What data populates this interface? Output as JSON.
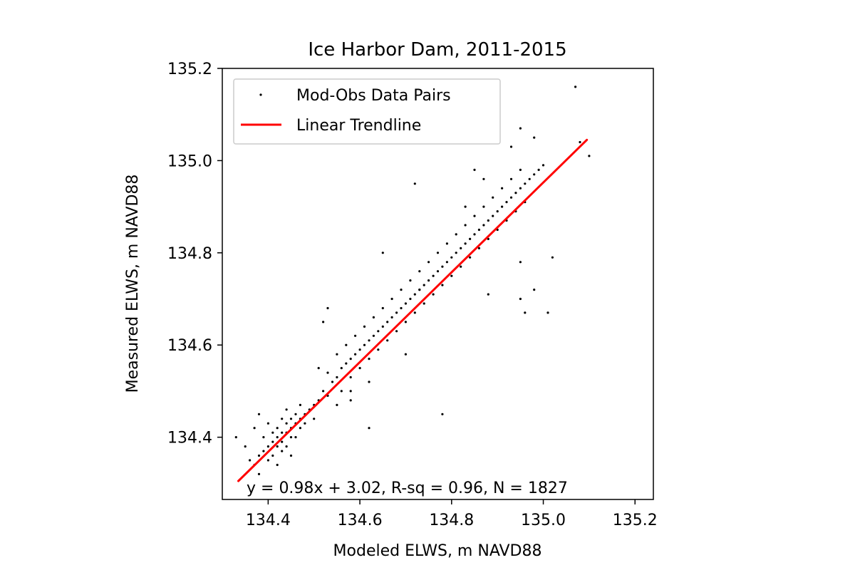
{
  "chart_data": {
    "type": "scatter",
    "title": "Ice Harbor Dam, 2011-2015",
    "xlabel": "Modeled ELWS, m NAVD88",
    "ylabel": "Measured ELWS, m NAVD88",
    "xlim": [
      134.3,
      135.24
    ],
    "ylim": [
      134.265,
      135.2
    ],
    "xticks": [
      "134.4",
      "134.6",
      "134.8",
      "135.0",
      "135.2"
    ],
    "yticks": [
      "134.4",
      "134.6",
      "134.8",
      "135.0",
      "135.2"
    ],
    "grid": false,
    "legend_position": "top-left",
    "series": [
      {
        "name": "Mod-Obs Data Pairs",
        "kind": "scatter",
        "color": "#000000",
        "points": [
          [
            134.33,
            134.4
          ],
          [
            134.35,
            134.38
          ],
          [
            134.36,
            134.35
          ],
          [
            134.37,
            134.42
          ],
          [
            134.37,
            134.34
          ],
          [
            134.38,
            134.36
          ],
          [
            134.38,
            134.45
          ],
          [
            134.38,
            134.32
          ],
          [
            134.39,
            134.4
          ],
          [
            134.39,
            134.37
          ],
          [
            134.4,
            134.38
          ],
          [
            134.4,
            134.43
          ],
          [
            134.4,
            134.35
          ],
          [
            134.41,
            134.41
          ],
          [
            134.41,
            134.39
          ],
          [
            134.41,
            134.36
          ],
          [
            134.42,
            134.42
          ],
          [
            134.42,
            134.4
          ],
          [
            134.42,
            134.38
          ],
          [
            134.42,
            134.34
          ],
          [
            134.43,
            134.44
          ],
          [
            134.43,
            134.41
          ],
          [
            134.43,
            134.39
          ],
          [
            134.43,
            134.37
          ],
          [
            134.44,
            134.43
          ],
          [
            134.44,
            134.41
          ],
          [
            134.44,
            134.38
          ],
          [
            134.44,
            134.46
          ],
          [
            134.45,
            134.42
          ],
          [
            134.45,
            134.4
          ],
          [
            134.45,
            134.44
          ],
          [
            134.45,
            134.36
          ],
          [
            134.46,
            134.43
          ],
          [
            134.46,
            134.45
          ],
          [
            134.46,
            134.4
          ],
          [
            134.47,
            134.44
          ],
          [
            134.47,
            134.42
          ],
          [
            134.47,
            134.47
          ],
          [
            134.48,
            134.45
          ],
          [
            134.48,
            134.43
          ],
          [
            134.49,
            134.46
          ],
          [
            134.5,
            134.47
          ],
          [
            134.5,
            134.44
          ],
          [
            134.51,
            134.48
          ],
          [
            134.51,
            134.55
          ],
          [
            134.52,
            134.5
          ],
          [
            134.53,
            134.49
          ],
          [
            134.53,
            134.54
          ],
          [
            134.54,
            134.52
          ],
          [
            134.55,
            134.53
          ],
          [
            134.55,
            134.58
          ],
          [
            134.56,
            134.55
          ],
          [
            134.56,
            134.5
          ],
          [
            134.57,
            134.56
          ],
          [
            134.57,
            134.6
          ],
          [
            134.58,
            134.57
          ],
          [
            134.58,
            134.53
          ],
          [
            134.59,
            134.58
          ],
          [
            134.59,
            134.62
          ],
          [
            134.6,
            134.59
          ],
          [
            134.6,
            134.55
          ],
          [
            134.61,
            134.6
          ],
          [
            134.61,
            134.64
          ],
          [
            134.62,
            134.61
          ],
          [
            134.62,
            134.57
          ],
          [
            134.63,
            134.62
          ],
          [
            134.63,
            134.66
          ],
          [
            134.64,
            134.63
          ],
          [
            134.64,
            134.59
          ],
          [
            134.65,
            134.64
          ],
          [
            134.65,
            134.68
          ],
          [
            134.66,
            134.65
          ],
          [
            134.66,
            134.61
          ],
          [
            134.67,
            134.66
          ],
          [
            134.67,
            134.7
          ],
          [
            134.68,
            134.67
          ],
          [
            134.68,
            134.63
          ],
          [
            134.69,
            134.68
          ],
          [
            134.69,
            134.72
          ],
          [
            134.7,
            134.69
          ],
          [
            134.7,
            134.65
          ],
          [
            134.71,
            134.7
          ],
          [
            134.71,
            134.74
          ],
          [
            134.72,
            134.71
          ],
          [
            134.72,
            134.67
          ],
          [
            134.73,
            134.72
          ],
          [
            134.73,
            134.76
          ],
          [
            134.74,
            134.73
          ],
          [
            134.74,
            134.69
          ],
          [
            134.75,
            134.74
          ],
          [
            134.75,
            134.78
          ],
          [
            134.76,
            134.75
          ],
          [
            134.76,
            134.71
          ],
          [
            134.77,
            134.76
          ],
          [
            134.77,
            134.8
          ],
          [
            134.78,
            134.77
          ],
          [
            134.78,
            134.73
          ],
          [
            134.79,
            134.78
          ],
          [
            134.79,
            134.82
          ],
          [
            134.8,
            134.79
          ],
          [
            134.8,
            134.75
          ],
          [
            134.81,
            134.8
          ],
          [
            134.81,
            134.84
          ],
          [
            134.82,
            134.81
          ],
          [
            134.82,
            134.77
          ],
          [
            134.83,
            134.82
          ],
          [
            134.83,
            134.86
          ],
          [
            134.84,
            134.83
          ],
          [
            134.84,
            134.79
          ],
          [
            134.85,
            134.84
          ],
          [
            134.85,
            134.88
          ],
          [
            134.86,
            134.85
          ],
          [
            134.86,
            134.81
          ],
          [
            134.87,
            134.86
          ],
          [
            134.87,
            134.9
          ],
          [
            134.88,
            134.87
          ],
          [
            134.88,
            134.83
          ],
          [
            134.89,
            134.88
          ],
          [
            134.89,
            134.92
          ],
          [
            134.9,
            134.89
          ],
          [
            134.9,
            134.85
          ],
          [
            134.91,
            134.9
          ],
          [
            134.91,
            134.94
          ],
          [
            134.92,
            134.91
          ],
          [
            134.92,
            134.87
          ],
          [
            134.93,
            134.92
          ],
          [
            134.93,
            134.96
          ],
          [
            134.94,
            134.93
          ],
          [
            134.94,
            134.89
          ],
          [
            134.95,
            134.94
          ],
          [
            134.95,
            134.98
          ],
          [
            134.96,
            134.95
          ],
          [
            134.96,
            134.91
          ],
          [
            134.97,
            134.96
          ],
          [
            134.98,
            134.97
          ],
          [
            134.99,
            134.98
          ],
          [
            135.0,
            134.99
          ],
          [
            134.62,
            134.52
          ],
          [
            134.55,
            134.47
          ],
          [
            134.72,
            134.95
          ],
          [
            134.65,
            134.8
          ],
          [
            134.52,
            134.65
          ],
          [
            134.53,
            134.68
          ],
          [
            134.62,
            134.42
          ],
          [
            134.58,
            134.5
          ],
          [
            134.78,
            134.45
          ],
          [
            134.95,
            134.7
          ],
          [
            134.96,
            134.67
          ],
          [
            135.01,
            134.67
          ],
          [
            135.02,
            134.79
          ],
          [
            135.07,
            135.16
          ],
          [
            135.08,
            135.04
          ],
          [
            135.1,
            135.01
          ],
          [
            134.98,
            135.05
          ],
          [
            134.95,
            135.07
          ],
          [
            134.93,
            135.03
          ],
          [
            134.88,
            134.71
          ],
          [
            134.98,
            134.72
          ],
          [
            134.73,
            134.72
          ],
          [
            134.83,
            134.9
          ],
          [
            134.85,
            134.98
          ],
          [
            134.95,
            134.78
          ],
          [
            134.87,
            134.96
          ],
          [
            134.7,
            134.58
          ],
          [
            134.58,
            134.48
          ]
        ]
      },
      {
        "name": "Linear Trendline",
        "kind": "line",
        "color": "#ff0000",
        "x": [
          134.335,
          135.095
        ],
        "y": [
          134.305,
          135.045
        ]
      }
    ],
    "annotation": "y = 0.98x + 3.02, R-sq = 0.96, N = 1827"
  }
}
